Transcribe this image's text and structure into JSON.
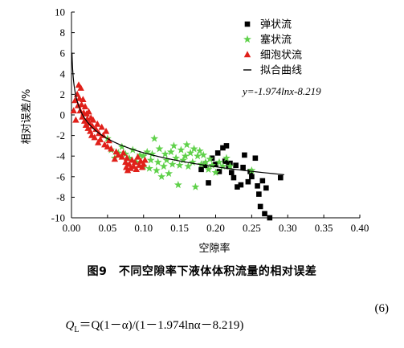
{
  "chart_data": {
    "type": "scatter",
    "xlabel": "空隙率",
    "ylabel": "相对误差/%",
    "xlim": [
      0.0,
      0.4
    ],
    "ylim": [
      -10,
      10
    ],
    "x_ticks": [
      "0.00",
      "0.05",
      "0.10",
      "0.15",
      "0.20",
      "0.25",
      "0.30",
      "0.35",
      "0.40"
    ],
    "y_ticks": [
      "10",
      "8",
      "6",
      "4",
      "2",
      "0",
      "-2",
      "-4",
      "-6",
      "-8",
      "-10"
    ],
    "legend_position": "top-right",
    "equation": "y=-1.974lnx-8.219",
    "fit": {
      "name": "拟合曲线",
      "a": -1.974,
      "b": -8.219,
      "x_range": [
        0.0005,
        0.295
      ]
    },
    "series": [
      {
        "name": "弹状流",
        "marker": "square",
        "color": "#000000",
        "points": [
          [
            0.18,
            -5.3
          ],
          [
            0.185,
            -4.9
          ],
          [
            0.19,
            -6.6
          ],
          [
            0.195,
            -4.2
          ],
          [
            0.2,
            -4.8
          ],
          [
            0.203,
            -3.7
          ],
          [
            0.205,
            -5.5
          ],
          [
            0.21,
            -3.2
          ],
          [
            0.213,
            -4.5
          ],
          [
            0.215,
            -3.0
          ],
          [
            0.218,
            -5.0
          ],
          [
            0.22,
            -4.7
          ],
          [
            0.222,
            -5.6
          ],
          [
            0.225,
            -6.1
          ],
          [
            0.228,
            -4.9
          ],
          [
            0.23,
            -7.0
          ],
          [
            0.235,
            -6.8
          ],
          [
            0.238,
            -5.1
          ],
          [
            0.24,
            -3.9
          ],
          [
            0.245,
            -6.5
          ],
          [
            0.248,
            -5.5
          ],
          [
            0.25,
            -6.0
          ],
          [
            0.255,
            -4.2
          ],
          [
            0.258,
            -6.9
          ],
          [
            0.26,
            -7.7
          ],
          [
            0.262,
            -8.9
          ],
          [
            0.265,
            -6.4
          ],
          [
            0.268,
            -9.6
          ],
          [
            0.27,
            -7.1
          ],
          [
            0.275,
            -10.0
          ],
          [
            0.29,
            -6.1
          ]
        ]
      },
      {
        "name": "塞状流",
        "marker": "star",
        "color": "#5fd14a",
        "points": [
          [
            0.05,
            -2.3
          ],
          [
            0.055,
            -3.4
          ],
          [
            0.06,
            -4.2
          ],
          [
            0.065,
            -3.7
          ],
          [
            0.07,
            -3.1
          ],
          [
            0.075,
            -3.8
          ],
          [
            0.08,
            -4.2
          ],
          [
            0.085,
            -3.4
          ],
          [
            0.09,
            -4.6
          ],
          [
            0.095,
            -3.9
          ],
          [
            0.1,
            -5.0
          ],
          [
            0.1,
            -4.0
          ],
          [
            0.105,
            -3.6
          ],
          [
            0.108,
            -5.2
          ],
          [
            0.11,
            -4.4
          ],
          [
            0.112,
            -3.8
          ],
          [
            0.115,
            -2.3
          ],
          [
            0.118,
            -5.4
          ],
          [
            0.12,
            -4.6
          ],
          [
            0.122,
            -3.3
          ],
          [
            0.125,
            -6.0
          ],
          [
            0.128,
            -5.0
          ],
          [
            0.13,
            -3.8
          ],
          [
            0.132,
            -4.4
          ],
          [
            0.135,
            -5.7
          ],
          [
            0.138,
            -3.6
          ],
          [
            0.14,
            -4.8
          ],
          [
            0.142,
            -3.0
          ],
          [
            0.145,
            -4.2
          ],
          [
            0.148,
            -6.8
          ],
          [
            0.15,
            -4.9
          ],
          [
            0.152,
            -3.4
          ],
          [
            0.155,
            -4.4
          ],
          [
            0.158,
            -4.0
          ],
          [
            0.16,
            -2.9
          ],
          [
            0.162,
            -5.0
          ],
          [
            0.165,
            -3.7
          ],
          [
            0.168,
            -4.6
          ],
          [
            0.17,
            -3.3
          ],
          [
            0.172,
            -7.0
          ],
          [
            0.175,
            -4.0
          ],
          [
            0.178,
            -3.5
          ],
          [
            0.18,
            -4.8
          ],
          [
            0.183,
            -3.9
          ],
          [
            0.186,
            -4.6
          ],
          [
            0.19,
            -5.3
          ],
          [
            0.192,
            -4.3
          ],
          [
            0.195,
            -4.9
          ],
          [
            0.2,
            -5.6
          ],
          [
            0.205,
            -4.6
          ],
          [
            0.21,
            -5.0
          ],
          [
            0.215,
            -4.2
          ],
          [
            0.22,
            -5.0
          ],
          [
            0.25,
            -5.4
          ]
        ]
      },
      {
        "name": "细泡状流",
        "marker": "triangle",
        "color": "#e0201a",
        "points": [
          [
            0.003,
            0.4
          ],
          [
            0.005,
            1.4
          ],
          [
            0.006,
            -0.5
          ],
          [
            0.008,
            2.0
          ],
          [
            0.009,
            0.9
          ],
          [
            0.01,
            2.9
          ],
          [
            0.011,
            1.6
          ],
          [
            0.012,
            0.4
          ],
          [
            0.013,
            2.6
          ],
          [
            0.014,
            1.0
          ],
          [
            0.015,
            -0.2
          ],
          [
            0.016,
            1.5
          ],
          [
            0.017,
            0.2
          ],
          [
            0.018,
            -0.6
          ],
          [
            0.019,
            0.8
          ],
          [
            0.02,
            -1.0
          ],
          [
            0.021,
            0.1
          ],
          [
            0.022,
            -0.4
          ],
          [
            0.023,
            -1.3
          ],
          [
            0.024,
            0.3
          ],
          [
            0.025,
            -0.8
          ],
          [
            0.026,
            -1.6
          ],
          [
            0.027,
            -0.3
          ],
          [
            0.028,
            -2.0
          ],
          [
            0.029,
            -1.1
          ],
          [
            0.03,
            -0.5
          ],
          [
            0.032,
            -2.2
          ],
          [
            0.034,
            -1.4
          ],
          [
            0.036,
            -0.9
          ],
          [
            0.037,
            -2.7
          ],
          [
            0.038,
            -1.8
          ],
          [
            0.04,
            -2.4
          ],
          [
            0.042,
            -1.2
          ],
          [
            0.044,
            -2.0
          ],
          [
            0.046,
            -2.9
          ],
          [
            0.048,
            -1.6
          ],
          [
            0.05,
            -3.1
          ],
          [
            0.052,
            -2.5
          ],
          [
            0.055,
            -3.3
          ],
          [
            0.06,
            -4.3
          ],
          [
            0.062,
            -3.6
          ],
          [
            0.065,
            -3.9
          ],
          [
            0.07,
            -4.1
          ],
          [
            0.072,
            -3.7
          ],
          [
            0.075,
            -4.6
          ],
          [
            0.076,
            -5.1
          ],
          [
            0.077,
            -4.2
          ],
          [
            0.078,
            -5.4
          ],
          [
            0.08,
            -4.8
          ],
          [
            0.082,
            -5.2
          ],
          [
            0.084,
            -4.4
          ],
          [
            0.086,
            -5.0
          ],
          [
            0.088,
            -4.6
          ],
          [
            0.09,
            -5.3
          ],
          [
            0.092,
            -4.1
          ],
          [
            0.094,
            -4.9
          ],
          [
            0.096,
            -4.5
          ],
          [
            0.098,
            -5.1
          ],
          [
            0.1,
            -4.8
          ],
          [
            0.102,
            -4.4
          ]
        ]
      }
    ]
  },
  "caption": "图9　不同空隙率下液体体积流量的相对误差",
  "formula": {
    "text": "Qₗ = Q(1−α)/(1−1.974lnα−8.219)",
    "lhs_q": "Q",
    "lhs_sub": "L",
    "rhs": "＝Q(1－α)/(1－1.974lnα－8.219)",
    "number": "(6)"
  }
}
